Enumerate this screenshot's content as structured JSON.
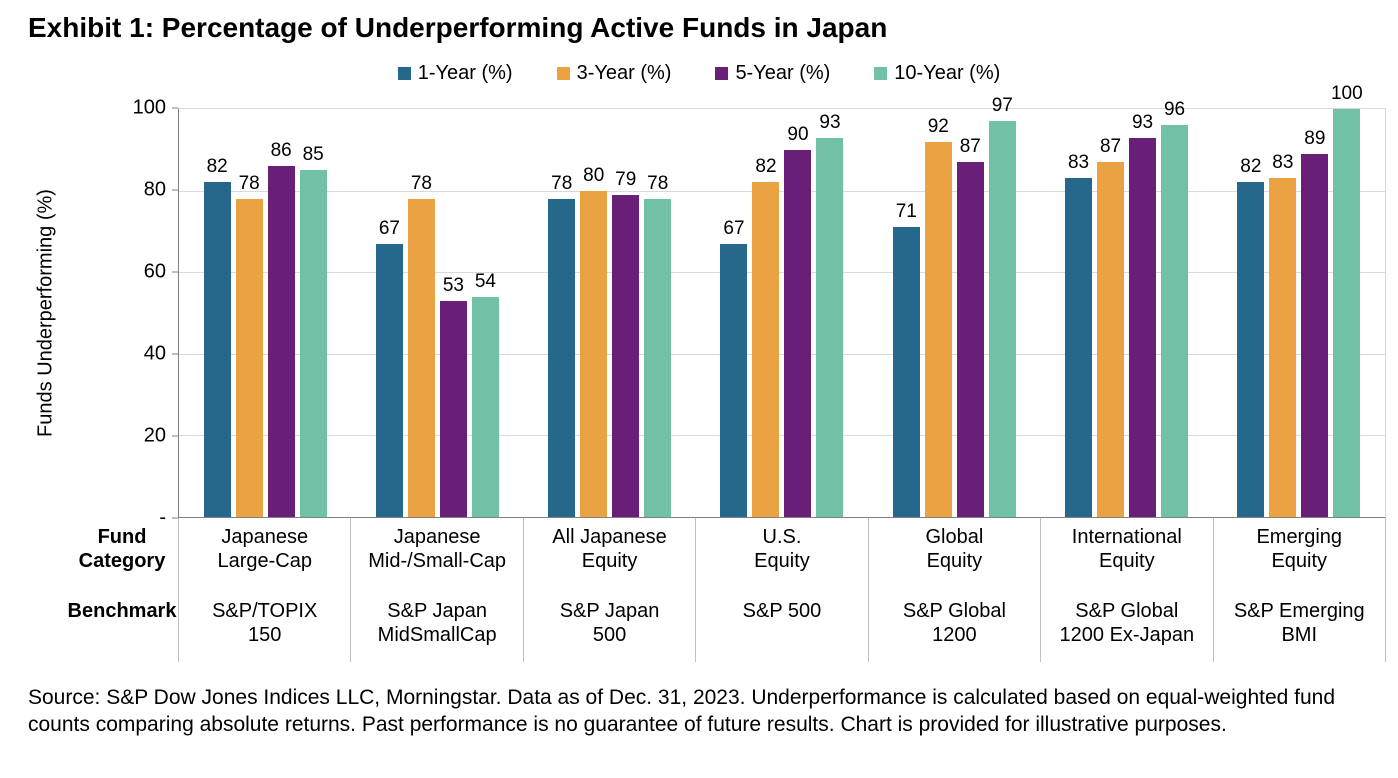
{
  "chart_data": {
    "type": "bar",
    "title": "Exhibit 1: Percentage of Underperforming Active Funds in Japan",
    "ylabel": "Funds Underperforming (%)",
    "ylim": [
      0,
      100
    ],
    "yticks": [
      {
        "value": 100,
        "label": "100"
      },
      {
        "value": 80,
        "label": "80"
      },
      {
        "value": 60,
        "label": "60"
      },
      {
        "value": 40,
        "label": "40"
      },
      {
        "value": 20,
        "label": "20"
      },
      {
        "value": 0,
        "label": "-"
      }
    ],
    "grid": "horizontal",
    "legend_position": "top",
    "row_headers": {
      "fund_category": "Fund\nCategory",
      "benchmark": "Benchmark"
    },
    "categories": [
      {
        "fund_category": "Japanese\nLarge-Cap",
        "benchmark": "S&P/TOPIX\n150"
      },
      {
        "fund_category": "Japanese\nMid-/Small-Cap",
        "benchmark": "S&P Japan\nMidSmallCap"
      },
      {
        "fund_category": "All Japanese\nEquity",
        "benchmark": "S&P Japan\n500"
      },
      {
        "fund_category": "U.S.\nEquity",
        "benchmark": "S&P 500"
      },
      {
        "fund_category": "Global\nEquity",
        "benchmark": "S&P Global\n1200"
      },
      {
        "fund_category": "International\nEquity",
        "benchmark": "S&P Global\n1200 Ex-Japan"
      },
      {
        "fund_category": "Emerging\nEquity",
        "benchmark": "S&P Emerging\nBMI"
      }
    ],
    "series": [
      {
        "name": "1-Year (%)",
        "color": "#26688C",
        "values": [
          82,
          67,
          78,
          67,
          71,
          83,
          82
        ]
      },
      {
        "name": "3-Year (%)",
        "color": "#EBA243",
        "values": [
          78,
          78,
          80,
          82,
          92,
          87,
          83
        ]
      },
      {
        "name": "5-Year (%)",
        "color": "#691F77",
        "values": [
          86,
          53,
          79,
          90,
          87,
          93,
          89
        ]
      },
      {
        "name": "10-Year (%)",
        "color": "#70C1A5",
        "values": [
          85,
          54,
          78,
          93,
          97,
          96,
          100
        ]
      }
    ]
  },
  "footer": {
    "source": "Source: S&P Dow Jones Indices LLC, Morningstar. Data as of Dec. 31, 2023. Underperformance is calculated based on equal-weighted fund counts comparing absolute returns. Past performance is no guarantee of future results. Chart is provided for illustrative purposes."
  }
}
